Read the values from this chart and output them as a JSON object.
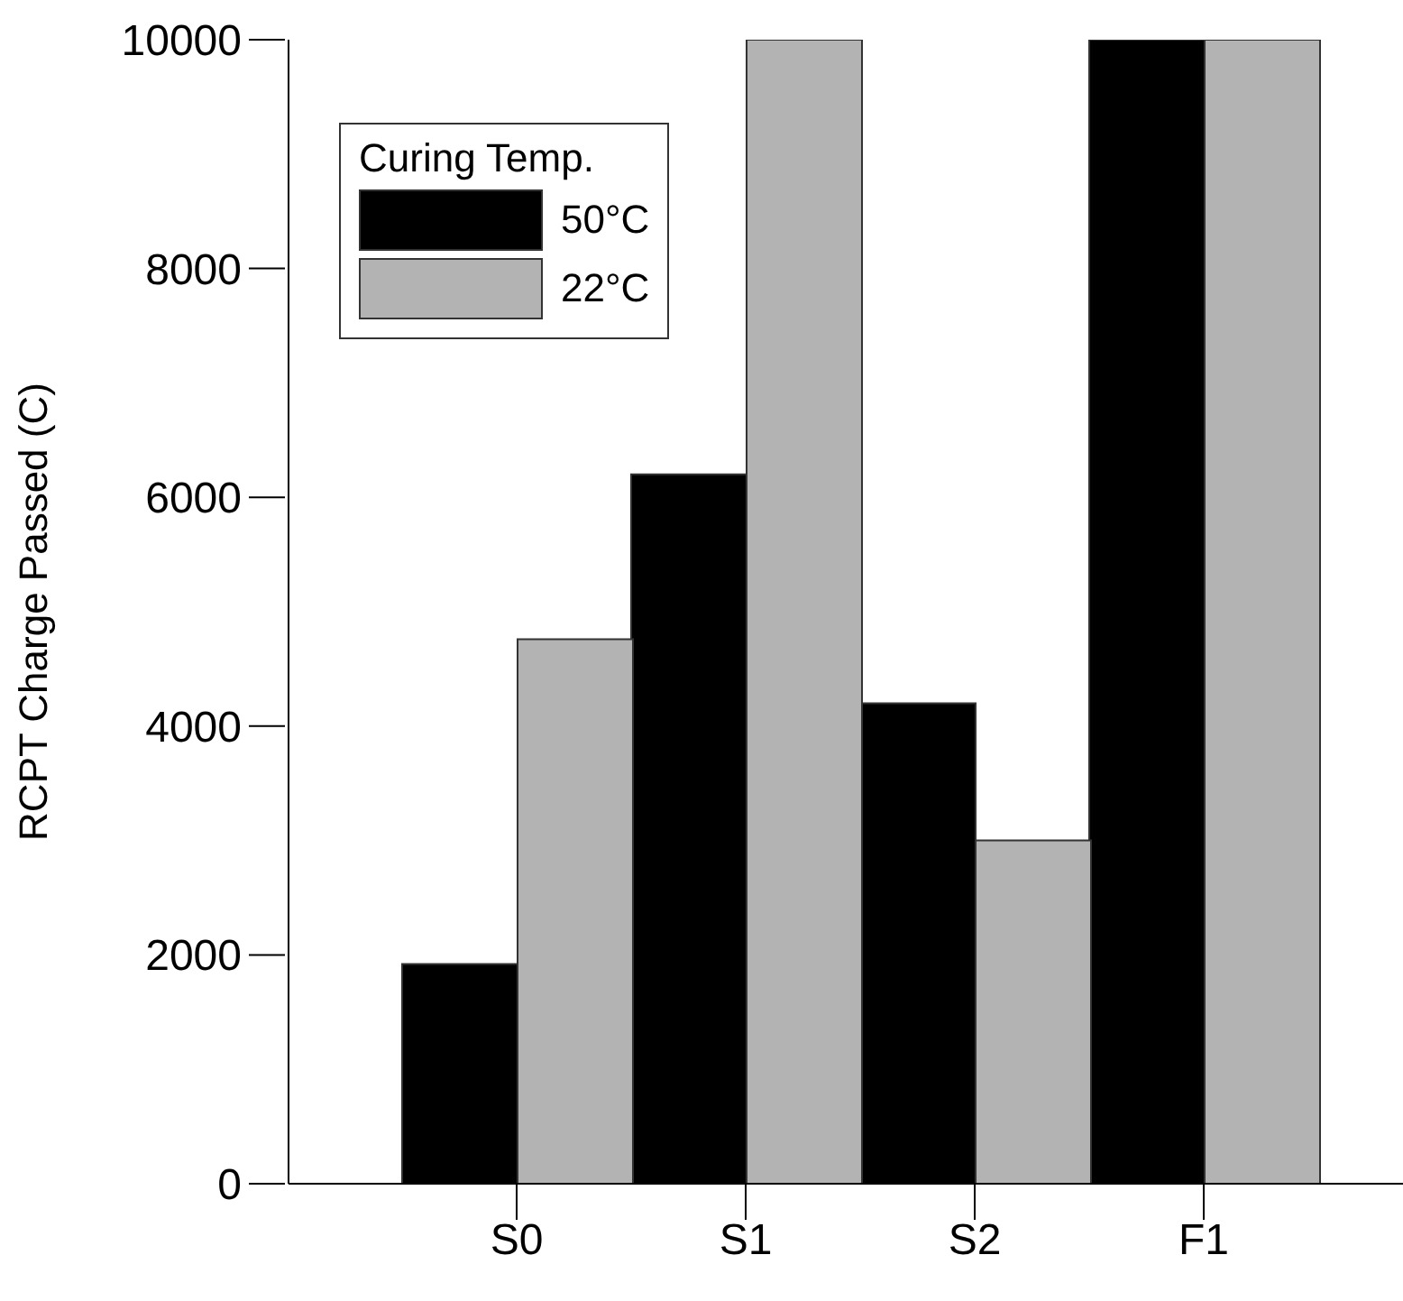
{
  "chart_data": {
    "type": "bar",
    "ylabel": "RCPT Charge Passed (C)",
    "legend_title": "Curing Temp.",
    "categories": [
      "S0",
      "S1",
      "S2",
      "F1"
    ],
    "series": [
      {
        "name": "50°C",
        "color": "#000000",
        "values": [
          1920,
          6200,
          4200,
          10000
        ]
      },
      {
        "name": "22°C",
        "color": "#b3b3b3",
        "values": [
          4760,
          10000,
          3000,
          10000
        ]
      }
    ],
    "ylim": [
      0,
      10000
    ],
    "yticks": [
      0,
      2000,
      4000,
      6000,
      8000,
      10000
    ],
    "grid": false,
    "legend": "top left"
  }
}
